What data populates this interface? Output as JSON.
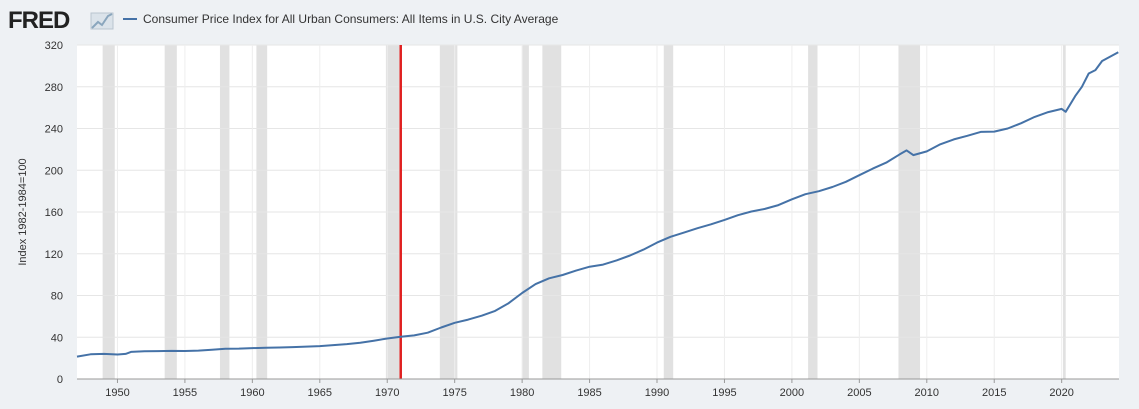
{
  "header": {
    "logo_text": "FRED",
    "logo_icon": "line-chart-icon"
  },
  "chart_data": {
    "type": "line",
    "title": "",
    "ylabel": "Index 1982-1984=100",
    "xlabel": "",
    "xlim": [
      1947.0,
      2024.25
    ],
    "ylim": [
      0,
      320
    ],
    "y_ticks": [
      0,
      40,
      80,
      120,
      160,
      200,
      240,
      280,
      320
    ],
    "x_ticks": [
      1950,
      1955,
      1960,
      1965,
      1970,
      1975,
      1980,
      1985,
      1990,
      1995,
      2000,
      2005,
      2010,
      2015,
      2020
    ],
    "grid": true,
    "legend_position": "top-left",
    "colors": {
      "series": "#4572a7",
      "recession": "#e1e1e1",
      "plot_bg": "#ffffff",
      "page_bg": "#eef1f4",
      "marker_line": "#e02020"
    },
    "recessions": [
      [
        1948.9,
        1949.8
      ],
      [
        1953.5,
        1954.4
      ],
      [
        1957.6,
        1958.3
      ],
      [
        1960.3,
        1961.1
      ],
      [
        1969.9,
        1970.9
      ],
      [
        1973.9,
        1975.2
      ],
      [
        1980.0,
        1980.5
      ],
      [
        1981.5,
        1982.9
      ],
      [
        1990.5,
        1991.2
      ],
      [
        2001.2,
        2001.9
      ],
      [
        2007.9,
        2009.5
      ],
      [
        2020.1,
        2020.3
      ]
    ],
    "marker_line_x": 1971.0,
    "series": [
      {
        "name": "Consumer Price Index for All Urban Consumers: All Items in U.S. City Average",
        "x": [
          1947,
          1948,
          1949,
          1950,
          1950.6,
          1951,
          1952,
          1953,
          1954,
          1955,
          1956,
          1957,
          1958,
          1959,
          1960,
          1961,
          1962,
          1963,
          1964,
          1965,
          1966,
          1967,
          1968,
          1969,
          1970,
          1971,
          1972,
          1973,
          1974,
          1975,
          1976,
          1977,
          1978,
          1979,
          1980,
          1981,
          1982,
          1983,
          1984,
          1985,
          1986,
          1987,
          1988,
          1989,
          1990,
          1991,
          1992,
          1993,
          1994,
          1995,
          1996,
          1997,
          1998,
          1999,
          2000,
          2001,
          2002,
          2003,
          2004,
          2005,
          2006,
          2007,
          2008,
          2008.5,
          2009,
          2010,
          2011,
          2012,
          2013,
          2014,
          2015,
          2016,
          2017,
          2018,
          2019,
          2020,
          2020.3,
          2021,
          2021.5,
          2022,
          2022.5,
          2023,
          2024.2
        ],
        "y": [
          21.5,
          23.7,
          24.0,
          23.5,
          24.0,
          26.0,
          26.5,
          26.7,
          26.9,
          26.8,
          27.2,
          28.1,
          28.9,
          29.1,
          29.6,
          29.9,
          30.2,
          30.6,
          31.0,
          31.5,
          32.5,
          33.4,
          34.8,
          36.7,
          38.8,
          40.5,
          41.8,
          44.4,
          49.3,
          53.8,
          56.9,
          60.6,
          65.2,
          72.6,
          82.4,
          90.9,
          96.5,
          99.6,
          103.9,
          107.6,
          109.6,
          113.6,
          118.3,
          124.0,
          130.7,
          136.2,
          140.3,
          144.5,
          148.2,
          152.4,
          156.9,
          160.5,
          163.0,
          166.6,
          172.2,
          177.1,
          179.9,
          184.0,
          188.9,
          195.3,
          201.6,
          207.3,
          215.3,
          219.0,
          214.5,
          218.1,
          224.9,
          229.6,
          233.0,
          236.7,
          237.0,
          240.0,
          245.1,
          251.1,
          255.7,
          258.8,
          256.0,
          271.0,
          280.0,
          292.7,
          296.0,
          304.7,
          313.0
        ]
      }
    ]
  }
}
